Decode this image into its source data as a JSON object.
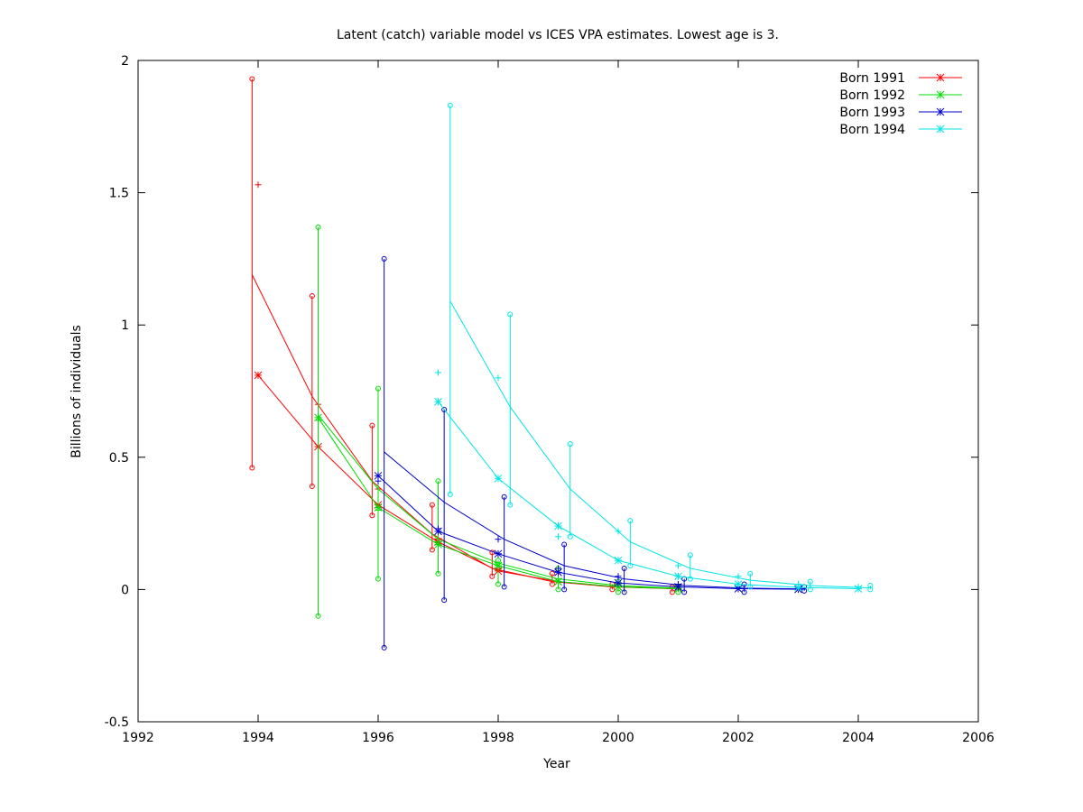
{
  "chart_data": {
    "type": "line",
    "title": "Latent (catch) variable model vs ICES VPA estimates. Lowest age is 3.",
    "xlabel": "Year",
    "ylabel": "Billions of individuals",
    "xlim": [
      1992,
      2006
    ],
    "ylim": [
      -0.5,
      2
    ],
    "xticks": [
      "1992",
      "1994",
      "1996",
      "1998",
      "2000",
      "2002",
      "2004",
      "2006"
    ],
    "yticks": [
      "-0.5",
      "0",
      "0.5",
      "1",
      "1.5",
      "2"
    ],
    "grid": false,
    "legend_position": "top-right",
    "series": [
      {
        "name": "Born 1991",
        "color": "#ff0000",
        "model_line": {
          "x": [
            1993.9,
            1994.9,
            1995.9,
            1996.9,
            1997.9,
            1998.9,
            1999.9,
            2000.9
          ],
          "y": [
            1.19,
            0.73,
            0.41,
            0.21,
            0.08,
            0.03,
            0.01,
            0.003
          ]
        },
        "vpa": {
          "x": [
            1994.0,
            1995.0,
            1996.0,
            1997.0,
            1998.0,
            1999.0,
            2000.0,
            2001.0
          ],
          "y": [
            0.81,
            0.54,
            0.32,
            0.18,
            0.07,
            0.03,
            0.01,
            0.005
          ]
        },
        "plus": {
          "x": [
            1994.0,
            1995.0,
            1996.0,
            1997.0,
            1998.0,
            1999.0,
            2000.0,
            2001.0
          ],
          "y": [
            1.53,
            0.7,
            0.38,
            0.19,
            0.08,
            0.03,
            0.01,
            0.005
          ]
        },
        "ci": [
          {
            "x": 1993.9,
            "lo": 0.46,
            "hi": 1.93
          },
          {
            "x": 1994.9,
            "lo": 0.39,
            "hi": 1.11
          },
          {
            "x": 1995.9,
            "lo": 0.28,
            "hi": 0.62
          },
          {
            "x": 1996.9,
            "lo": 0.15,
            "hi": 0.32
          },
          {
            "x": 1997.9,
            "lo": 0.05,
            "hi": 0.14
          },
          {
            "x": 1998.9,
            "lo": 0.02,
            "hi": 0.06
          },
          {
            "x": 1999.9,
            "lo": 0.0,
            "hi": 0.02
          },
          {
            "x": 2000.9,
            "lo": -0.01,
            "hi": 0.01
          }
        ]
      },
      {
        "name": "Born 1992",
        "color": "#00dd00",
        "model_line": {
          "x": [
            1995.0,
            1996.0,
            1997.0,
            1998.0,
            1999.0,
            2000.0,
            2001.0
          ],
          "y": [
            0.66,
            0.38,
            0.19,
            0.1,
            0.04,
            0.015,
            0.005
          ]
        },
        "vpa": {
          "x": [
            1995.0,
            1996.0,
            1997.0,
            1998.0,
            1999.0,
            2000.0,
            2001.0
          ],
          "y": [
            0.65,
            0.31,
            0.17,
            0.09,
            0.03,
            0.01,
            0.003
          ]
        },
        "plus": {
          "x": [
            1995.0,
            1996.0,
            1997.0,
            1998.0,
            1999.0,
            2000.0,
            2001.0
          ],
          "y": [
            0.64,
            0.3,
            0.18,
            0.1,
            0.04,
            0.02,
            0.005
          ]
        },
        "ci": [
          {
            "x": 1995.0,
            "lo": -0.1,
            "hi": 1.37
          },
          {
            "x": 1996.0,
            "lo": 0.04,
            "hi": 0.76
          },
          {
            "x": 1997.0,
            "lo": 0.06,
            "hi": 0.41
          },
          {
            "x": 1998.0,
            "lo": 0.02,
            "hi": 0.11
          },
          {
            "x": 1999.0,
            "lo": 0.0,
            "hi": 0.08
          },
          {
            "x": 2000.0,
            "lo": -0.01,
            "hi": 0.03
          },
          {
            "x": 2001.0,
            "lo": -0.01,
            "hi": 0.01
          }
        ]
      },
      {
        "name": "Born 1993",
        "color": "#0000cc",
        "model_line": {
          "x": [
            1996.1,
            1997.1,
            1998.1,
            1999.1,
            2000.1,
            2001.1,
            2002.1,
            2003.1
          ],
          "y": [
            0.52,
            0.33,
            0.19,
            0.09,
            0.04,
            0.015,
            0.005,
            0.002
          ]
        },
        "vpa": {
          "x": [
            1996.0,
            1997.0,
            1998.0,
            1999.0,
            2000.0,
            2001.0,
            2002.0,
            2003.0
          ],
          "y": [
            0.43,
            0.22,
            0.135,
            0.065,
            0.025,
            0.01,
            0.003,
            0.001
          ]
        },
        "plus": {
          "x": [
            1996.0,
            1997.0,
            1998.0,
            1999.0,
            2000.0,
            2001.0,
            2002.0,
            2003.0
          ],
          "y": [
            0.41,
            0.23,
            0.19,
            0.08,
            0.05,
            0.02,
            0.01,
            0.004
          ]
        },
        "ci": [
          {
            "x": 1996.1,
            "lo": -0.22,
            "hi": 1.25
          },
          {
            "x": 1997.1,
            "lo": -0.04,
            "hi": 0.68
          },
          {
            "x": 1998.1,
            "lo": 0.01,
            "hi": 0.35
          },
          {
            "x": 1999.1,
            "lo": 0.0,
            "hi": 0.17
          },
          {
            "x": 2000.1,
            "lo": -0.01,
            "hi": 0.08
          },
          {
            "x": 2001.1,
            "lo": -0.01,
            "hi": 0.04
          },
          {
            "x": 2002.1,
            "lo": -0.01,
            "hi": 0.02
          },
          {
            "x": 2003.1,
            "lo": -0.005,
            "hi": 0.01
          }
        ]
      },
      {
        "name": "Born 1994",
        "color": "#00e5e5",
        "model_line": {
          "x": [
            1997.2,
            1998.2,
            1999.2,
            2000.2,
            2001.2,
            2002.2,
            2003.2,
            2004.2
          ],
          "y": [
            1.09,
            0.69,
            0.38,
            0.18,
            0.08,
            0.035,
            0.015,
            0.006
          ]
        },
        "vpa": {
          "x": [
            1997.0,
            1998.0,
            1999.0,
            2000.0,
            2001.0,
            2002.0,
            2003.0,
            2004.0
          ],
          "y": [
            0.71,
            0.42,
            0.24,
            0.11,
            0.05,
            0.02,
            0.008,
            0.003
          ]
        },
        "plus": {
          "x": [
            1997.0,
            1998.0,
            1999.0,
            2000.0,
            2001.0,
            2002.0,
            2003.0,
            2004.0
          ],
          "y": [
            0.82,
            0.8,
            0.2,
            0.22,
            0.09,
            0.05,
            0.02,
            0.01
          ]
        },
        "ci": [
          {
            "x": 1997.2,
            "lo": 0.36,
            "hi": 1.83
          },
          {
            "x": 1998.2,
            "lo": 0.32,
            "hi": 1.04
          },
          {
            "x": 1999.2,
            "lo": 0.2,
            "hi": 0.55
          },
          {
            "x": 2000.2,
            "lo": 0.09,
            "hi": 0.26
          },
          {
            "x": 2001.2,
            "lo": 0.04,
            "hi": 0.13
          },
          {
            "x": 2002.2,
            "lo": 0.01,
            "hi": 0.06
          },
          {
            "x": 2003.2,
            "lo": 0.0,
            "hi": 0.03
          },
          {
            "x": 2004.2,
            "lo": 0.0,
            "hi": 0.015
          }
        ]
      }
    ]
  }
}
